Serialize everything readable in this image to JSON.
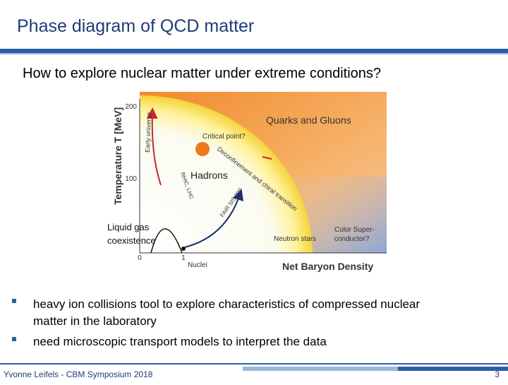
{
  "header": {
    "title": "Phase diagram of QCD matter"
  },
  "subtitle": "How to explore nuclear matter under extreme conditions?",
  "figure": {
    "y_axis_label": "Temperature T [MeV]",
    "y_ticks": [
      "200",
      "100"
    ],
    "x_ticks": [
      "0",
      "1"
    ],
    "x_axis_label": "Net Baryon Density",
    "x_tick_note": "Nuclei",
    "regions": {
      "qgp": "Quarks and Gluons",
      "hadrons": "Hadrons",
      "neutron_stars": "Neutron stars",
      "color_superconductor": [
        "Color Super-",
        "conductor?"
      ]
    },
    "critical_point": "Critical point?",
    "early_universe": "Early universe",
    "transition": "Deconfinement and chiral transition",
    "rhic_lhc": "RHIC, LHC",
    "fair": "FAIR SIS 300",
    "liquid_gas": [
      "Liquid gas",
      "coexistence"
    ]
  },
  "bullets": [
    [
      "heavy ion collisions tool to explore characteristics of compressed nuclear",
      "matter in the laboratory"
    ],
    [
      "need microscopic transport models to interpret the data"
    ]
  ],
  "footer": {
    "author": "Yvonne Leifels - CBM Symposium 2018",
    "page": "3"
  }
}
